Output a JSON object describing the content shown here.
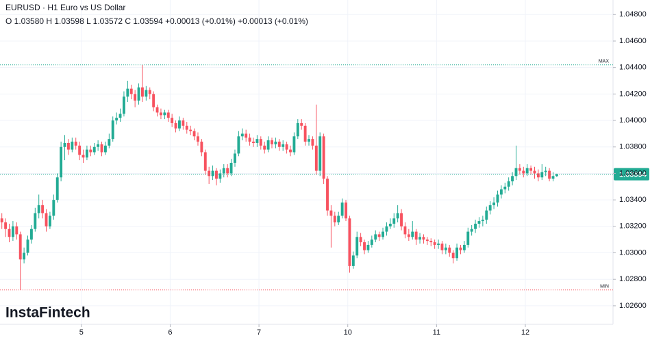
{
  "chart_data": {
    "type": "candlestick",
    "title": "EURUSD · H1 Euro vs US Dollar",
    "subtitle": "O 1.03580 H 1.03598 L 1.03572 C 1.03594 +0.00013 (+0.01%) +0.00013 (+0.01%)",
    "watermark": "InstaFintech",
    "up_color": "#22ab94",
    "down_color": "#f7525f",
    "grid": true,
    "xlim": [
      -0.5,
      165.2
    ],
    "ylim": [
      1.0246,
      1.0491
    ],
    "xticks": [
      {
        "value": 21.5,
        "label": "5"
      },
      {
        "value": 45.5,
        "label": "6"
      },
      {
        "value": 69.5,
        "label": "7"
      },
      {
        "value": 93.5,
        "label": "10"
      },
      {
        "value": 117.5,
        "label": "11"
      },
      {
        "value": 141.5,
        "label": "12"
      }
    ],
    "yticks": [
      {
        "value": 1.026,
        "label": "1.02600"
      },
      {
        "value": 1.028,
        "label": "1.02800"
      },
      {
        "value": 1.03,
        "label": "1.03000"
      },
      {
        "value": 1.032,
        "label": "1.03200"
      },
      {
        "value": 1.034,
        "label": "1.03400"
      },
      {
        "value": 1.036,
        "label": "1.03600"
      },
      {
        "value": 1.038,
        "label": "1.03800"
      },
      {
        "value": 1.04,
        "label": "1.04000"
      },
      {
        "value": 1.042,
        "label": "1.04200"
      },
      {
        "value": 1.044,
        "label": "1.04400"
      },
      {
        "value": 1.046,
        "label": "1.04600"
      },
      {
        "value": 1.048,
        "label": "1.04800"
      }
    ],
    "max_line": {
      "value": 1.0442,
      "label": "MAX",
      "color": "#22ab94"
    },
    "min_line": {
      "value": 1.0272,
      "label": "MIN",
      "color": "#f7525f"
    },
    "last_price": {
      "value": 1.03594,
      "label": "1.03594",
      "color": "#22ab94"
    },
    "x": [
      0,
      1,
      2,
      3,
      4,
      5,
      6,
      7,
      8,
      9,
      10,
      11,
      12,
      13,
      14,
      15,
      16,
      17,
      18,
      19,
      20,
      21,
      22,
      23,
      24,
      25,
      26,
      27,
      28,
      29,
      30,
      31,
      32,
      33,
      34,
      35,
      36,
      37,
      38,
      39,
      40,
      41,
      42,
      43,
      44,
      45,
      46,
      47,
      48,
      49,
      50,
      51,
      52,
      53,
      54,
      55,
      56,
      57,
      58,
      59,
      60,
      61,
      62,
      63,
      64,
      65,
      66,
      67,
      68,
      69,
      70,
      71,
      72,
      73,
      74,
      75,
      76,
      77,
      78,
      79,
      80,
      81,
      82,
      83,
      84,
      85,
      86,
      87,
      88,
      89,
      90,
      91,
      92,
      93,
      94,
      95,
      96,
      97,
      98,
      99,
      100,
      101,
      102,
      103,
      104,
      105,
      106,
      107,
      108,
      109,
      110,
      111,
      112,
      113,
      114,
      115,
      116,
      117,
      118,
      119,
      120,
      121,
      122,
      123,
      124,
      125,
      126,
      127,
      128,
      129,
      130,
      131,
      132,
      133,
      134,
      135,
      136,
      137,
      138,
      139,
      140,
      141,
      142,
      143,
      144,
      145,
      146,
      147,
      148,
      149,
      150
    ],
    "open": [
      1.0326,
      1.0323,
      1.0318,
      1.0312,
      1.032,
      1.0314,
      1.0295,
      1.03,
      1.031,
      1.0318,
      1.033,
      1.0336,
      1.033,
      1.032,
      1.0328,
      1.034,
      1.0357,
      1.038,
      1.0383,
      1.0378,
      1.0384,
      1.0381,
      1.0374,
      1.0372,
      1.0378,
      1.0376,
      1.038,
      1.0382,
      1.0376,
      1.0381,
      1.0386,
      1.04,
      1.0402,
      1.0405,
      1.0418,
      1.0424,
      1.042,
      1.0415,
      1.0425,
      1.0418,
      1.0423,
      1.042,
      1.041,
      1.0406,
      1.0404,
      1.0406,
      1.0402,
      1.0398,
      1.0394,
      1.04,
      1.0396,
      1.0393,
      1.0392,
      1.0388,
      1.0384,
      1.0376,
      1.0362,
      1.0358,
      1.0362,
      1.0356,
      1.036,
      1.0364,
      1.036,
      1.0368,
      1.0375,
      1.0388,
      1.039,
      1.0387,
      1.0384,
      1.0383,
      1.0386,
      1.0381,
      1.0378,
      1.0385,
      1.0382,
      1.0384,
      1.038,
      1.0382,
      1.0378,
      1.0376,
      1.0388,
      1.0398,
      1.0396,
      1.0384,
      1.0386,
      1.0381,
      1.0362,
      1.0388,
      1.0356,
      1.0332,
      1.0328,
      1.0323,
      1.0328,
      1.0338,
      1.0326,
      1.029,
      1.0298,
      1.0312,
      1.0308,
      1.0302,
      1.0306,
      1.031,
      1.0314,
      1.0312,
      1.0316,
      1.032,
      1.0322,
      1.0326,
      1.033,
      1.032,
      1.0314,
      1.0312,
      1.0316,
      1.031,
      1.0312,
      1.031,
      1.0309,
      1.0308,
      1.0306,
      1.0307,
      1.0302,
      1.0304,
      1.03,
      1.0296,
      1.0304,
      1.0302,
      1.0306,
      1.0316,
      1.0318,
      1.0322,
      1.0324,
      1.0325,
      1.0332,
      1.0336,
      1.0338,
      1.0344,
      1.0348,
      1.035,
      1.0354,
      1.0358,
      1.0364,
      1.0362,
      1.036,
      1.0364,
      1.0362,
      1.036,
      1.0357,
      1.0361,
      1.0362,
      1.0356,
      1.0358
    ],
    "high": [
      1.033,
      1.0326,
      1.0322,
      1.0324,
      1.0323,
      1.0316,
      1.0304,
      1.0313,
      1.0321,
      1.0334,
      1.0344,
      1.034,
      1.0333,
      1.0331,
      1.0344,
      1.036,
      1.0384,
      1.0389,
      1.0386,
      1.0387,
      1.0387,
      1.0384,
      1.0378,
      1.0381,
      1.0381,
      1.0383,
      1.0385,
      1.0384,
      1.0384,
      1.039,
      1.0403,
      1.0406,
      1.0409,
      1.0422,
      1.043,
      1.0427,
      1.0423,
      1.0428,
      1.0442,
      1.0426,
      1.0425,
      1.0422,
      1.0412,
      1.0409,
      1.0408,
      1.0408,
      1.0405,
      1.04,
      1.0403,
      1.0402,
      1.0399,
      1.0396,
      1.0394,
      1.0391,
      1.0386,
      1.0378,
      1.0365,
      1.0366,
      1.0364,
      1.0363,
      1.0367,
      1.0367,
      1.0371,
      1.0378,
      1.0392,
      1.0394,
      1.0393,
      1.039,
      1.0387,
      1.0389,
      1.0388,
      1.0384,
      1.0388,
      1.0387,
      1.0387,
      1.0386,
      1.0385,
      1.0384,
      1.0381,
      1.0391,
      1.0401,
      1.0401,
      1.0398,
      1.0389,
      1.0388,
      1.0412,
      1.0391,
      1.039,
      1.0358,
      1.0336,
      1.0331,
      1.0331,
      1.0341,
      1.034,
      1.0328,
      1.0301,
      1.0316,
      1.0315,
      1.031,
      1.0309,
      1.0313,
      1.0317,
      1.0316,
      1.0319,
      1.0323,
      1.0326,
      1.033,
      1.0336,
      1.0333,
      1.0323,
      1.0318,
      1.0324,
      1.0318,
      1.0315,
      1.0314,
      1.0312,
      1.0311,
      1.031,
      1.031,
      1.0309,
      1.0307,
      1.0306,
      1.0302,
      1.0307,
      1.0306,
      1.0309,
      1.0319,
      1.0321,
      1.0325,
      1.0327,
      1.0328,
      1.0335,
      1.0339,
      1.0342,
      1.0347,
      1.0351,
      1.0353,
      1.0357,
      1.0361,
      1.0381,
      1.0367,
      1.0365,
      1.0367,
      1.0366,
      1.0365,
      1.0363,
      1.0367,
      1.0365,
      1.0364,
      1.0361,
      1.03598
    ],
    "low": [
      1.0318,
      1.0312,
      1.0308,
      1.0309,
      1.031,
      1.0272,
      1.0292,
      1.0298,
      1.0307,
      1.0316,
      1.0326,
      1.0326,
      1.0316,
      1.0318,
      1.0325,
      1.0338,
      1.0354,
      1.037,
      1.0374,
      1.0376,
      1.0378,
      1.037,
      1.0368,
      1.037,
      1.0373,
      1.0374,
      1.0377,
      1.0373,
      1.0374,
      1.0379,
      1.0384,
      1.0397,
      1.0399,
      1.0403,
      1.0414,
      1.0416,
      1.041,
      1.0412,
      1.0414,
      1.0415,
      1.0416,
      1.0407,
      1.0403,
      1.0401,
      1.0401,
      1.0399,
      1.0395,
      1.0391,
      1.0392,
      1.0393,
      1.039,
      1.0389,
      1.0385,
      1.0381,
      1.0373,
      1.0359,
      1.0352,
      1.0355,
      1.0351,
      1.0353,
      1.0357,
      1.0357,
      1.0358,
      1.0365,
      1.0373,
      1.0385,
      1.0384,
      1.0381,
      1.038,
      1.038,
      1.0378,
      1.0375,
      1.0376,
      1.0379,
      1.0379,
      1.0377,
      1.0377,
      1.0375,
      1.0373,
      1.0374,
      1.0386,
      1.0393,
      1.0381,
      1.0381,
      1.0378,
      1.0359,
      1.0358,
      1.0352,
      1.0328,
      1.0304,
      1.032,
      1.0321,
      1.0326,
      1.0324,
      1.0285,
      1.0288,
      1.0296,
      1.0305,
      1.0299,
      1.03,
      1.0304,
      1.0308,
      1.0309,
      1.031,
      1.0313,
      1.0318,
      1.0319,
      1.0323,
      1.0317,
      1.0311,
      1.0309,
      1.031,
      1.0306,
      1.0307,
      1.0307,
      1.0306,
      1.0305,
      1.0303,
      1.0303,
      1.0299,
      1.0299,
      1.0297,
      1.0292,
      1.0294,
      1.0299,
      1.03,
      1.0304,
      1.0313,
      1.0315,
      1.0319,
      1.032,
      1.0322,
      1.0329,
      1.0333,
      1.0335,
      1.0341,
      1.0345,
      1.0347,
      1.0351,
      1.0355,
      1.0359,
      1.0357,
      1.0358,
      1.0359,
      1.0356,
      1.0354,
      1.0355,
      1.0358,
      1.0354,
      1.0354,
      1.03572
    ],
    "close": [
      1.0323,
      1.0318,
      1.0312,
      1.032,
      1.0314,
      1.0295,
      1.03,
      1.031,
      1.0318,
      1.033,
      1.0336,
      1.033,
      1.032,
      1.0328,
      1.034,
      1.0357,
      1.038,
      1.0383,
      1.0378,
      1.0384,
      1.0381,
      1.0374,
      1.0372,
      1.0378,
      1.0376,
      1.038,
      1.0382,
      1.0376,
      1.0381,
      1.0386,
      1.04,
      1.0402,
      1.0405,
      1.0418,
      1.0424,
      1.042,
      1.0415,
      1.0425,
      1.0418,
      1.0423,
      1.042,
      1.041,
      1.0406,
      1.0404,
      1.0406,
      1.0402,
      1.0398,
      1.0394,
      1.04,
      1.0396,
      1.0393,
      1.0392,
      1.0388,
      1.0384,
      1.0376,
      1.0362,
      1.0358,
      1.0362,
      1.0356,
      1.036,
      1.0364,
      1.036,
      1.0368,
      1.0375,
      1.0388,
      1.039,
      1.0387,
      1.0384,
      1.0383,
      1.0386,
      1.0381,
      1.0378,
      1.0385,
      1.0382,
      1.0384,
      1.038,
      1.0382,
      1.0378,
      1.0376,
      1.0388,
      1.0398,
      1.0396,
      1.0384,
      1.0386,
      1.0381,
      1.0362,
      1.0388,
      1.0356,
      1.0332,
      1.0328,
      1.0323,
      1.0328,
      1.0338,
      1.0326,
      1.029,
      1.0298,
      1.0312,
      1.0308,
      1.0302,
      1.0306,
      1.031,
      1.0314,
      1.0312,
      1.0316,
      1.032,
      1.0322,
      1.0326,
      1.033,
      1.032,
      1.0314,
      1.0312,
      1.0316,
      1.031,
      1.0312,
      1.031,
      1.0309,
      1.0308,
      1.0306,
      1.0307,
      1.0302,
      1.0304,
      1.03,
      1.0296,
      1.0304,
      1.0302,
      1.0306,
      1.0316,
      1.0318,
      1.0322,
      1.0324,
      1.0325,
      1.0332,
      1.0336,
      1.0338,
      1.0344,
      1.0348,
      1.035,
      1.0354,
      1.0358,
      1.0364,
      1.0362,
      1.036,
      1.0364,
      1.0362,
      1.036,
      1.0357,
      1.0361,
      1.0362,
      1.0356,
      1.0358,
      1.03594
    ]
  }
}
